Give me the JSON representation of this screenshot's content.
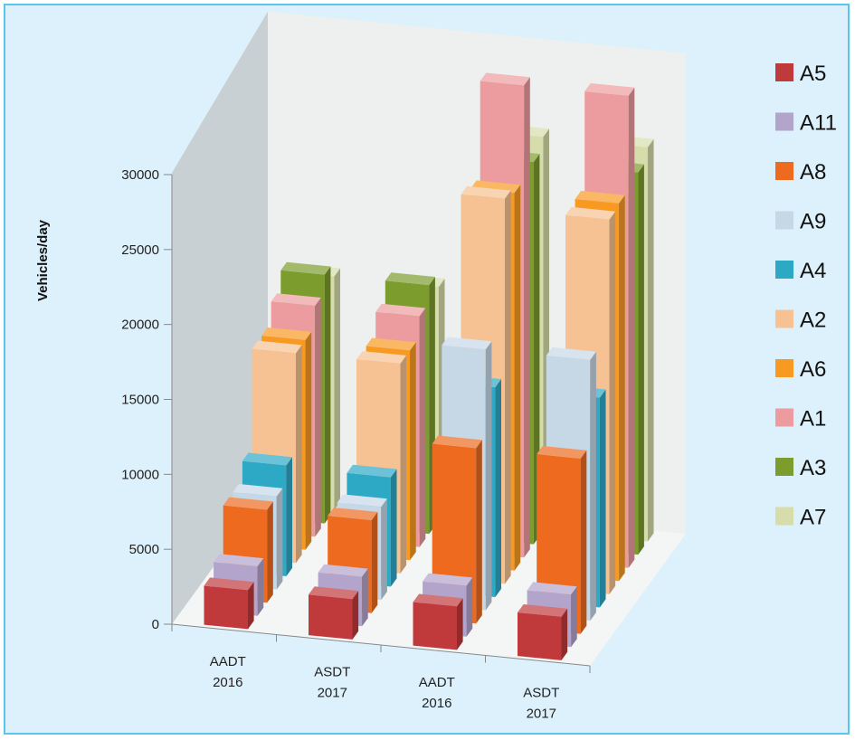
{
  "chart_data": {
    "type": "bar",
    "title": "",
    "ylabel": "Vehicles/day",
    "xlabel": "",
    "ylim": [
      0,
      30000
    ],
    "yticks": [
      0,
      5000,
      10000,
      15000,
      20000,
      25000,
      30000
    ],
    "categories": [
      {
        "line1": "AADT",
        "line2": "2016"
      },
      {
        "line1": "ASDT",
        "line2": "2017"
      },
      {
        "line1": "AADT",
        "line2": "2016"
      },
      {
        "line1": "ASDT",
        "line2": "2017"
      }
    ],
    "legend_position": "right",
    "series": [
      {
        "name": "A5",
        "color": "#c0393b",
        "values": [
          2600,
          2700,
          2900,
          2900
        ]
      },
      {
        "name": "A11",
        "color": "#b3a4cc",
        "values": [
          3300,
          3300,
          3400,
          3500
        ]
      },
      {
        "name": "A8",
        "color": "#ee6a1f",
        "values": [
          6200,
          6200,
          11700,
          11700
        ]
      },
      {
        "name": "A9",
        "color": "#c6d7e6",
        "values": [
          6200,
          6200,
          17400,
          17400
        ]
      },
      {
        "name": "A4",
        "color": "#2da9c6",
        "values": [
          7400,
          7300,
          14000,
          14000
        ]
      },
      {
        "name": "A2",
        "color": "#f7c293",
        "values": [
          14000,
          14000,
          25700,
          25000
        ]
      },
      {
        "name": "A6",
        "color": "#f89a22",
        "values": [
          14000,
          14000,
          25200,
          25200
        ]
      },
      {
        "name": "A1",
        "color": "#ec9c9e",
        "values": [
          15400,
          15400,
          31500,
          31500
        ]
      },
      {
        "name": "A3",
        "color": "#7c9c2e",
        "values": [
          16600,
          16600,
          25500,
          25500
        ]
      },
      {
        "name": "A7",
        "color": "#d6ddaa",
        "values": [
          15600,
          15600,
          26300,
          26300
        ]
      }
    ]
  }
}
